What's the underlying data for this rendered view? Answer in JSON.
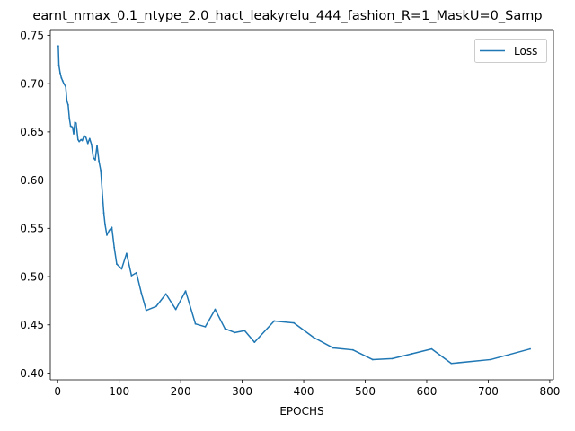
{
  "chart_data": {
    "type": "line",
    "title": "earnt_nmax_0.1_ntype_2.0_hact_leakyrelu_444_fashion_R=1_MaskU=0_Samp",
    "xlabel": "EPOCHS",
    "ylabel": "",
    "xlim": [
      -12,
      806
    ],
    "ylim": [
      0.393,
      0.756
    ],
    "x_ticks": [
      0,
      100,
      200,
      300,
      400,
      500,
      600,
      700,
      800
    ],
    "y_ticks": [
      0.4,
      0.45,
      0.5,
      0.55,
      0.6,
      0.65,
      0.7,
      0.75
    ],
    "grid": false,
    "legend_position": "top-right",
    "colors": {
      "line": "#1f77b4",
      "axes": "#000000"
    },
    "series": [
      {
        "name": "Loss",
        "x": [
          1,
          2,
          4,
          6,
          8,
          10,
          13,
          15,
          17,
          19,
          21,
          24,
          26,
          28,
          30,
          33,
          35,
          38,
          40,
          43,
          46,
          49,
          52,
          55,
          58,
          61,
          64,
          67,
          70,
          73,
          75,
          77,
          80,
          84,
          88,
          92,
          96,
          104,
          112,
          120,
          128,
          136,
          144,
          160,
          176,
          192,
          208,
          224,
          240,
          256,
          272,
          288,
          304,
          320,
          352,
          384,
          416,
          448,
          480,
          512,
          544,
          576,
          608,
          640,
          704,
          768
        ],
        "y": [
          0.739,
          0.719,
          0.711,
          0.706,
          0.703,
          0.7,
          0.697,
          0.682,
          0.678,
          0.664,
          0.656,
          0.655,
          0.648,
          0.66,
          0.659,
          0.642,
          0.64,
          0.642,
          0.641,
          0.646,
          0.644,
          0.638,
          0.643,
          0.637,
          0.623,
          0.621,
          0.636,
          0.62,
          0.61,
          0.583,
          0.566,
          0.554,
          0.543,
          0.548,
          0.551,
          0.53,
          0.513,
          0.508,
          0.524,
          0.501,
          0.504,
          0.483,
          0.465,
          0.469,
          0.482,
          0.466,
          0.485,
          0.451,
          0.448,
          0.466,
          0.446,
          0.442,
          0.444,
          0.432,
          0.454,
          0.452,
          0.437,
          0.426,
          0.424,
          0.414,
          0.415,
          0.42,
          0.425,
          0.41,
          0.414,
          0.425
        ]
      }
    ]
  }
}
